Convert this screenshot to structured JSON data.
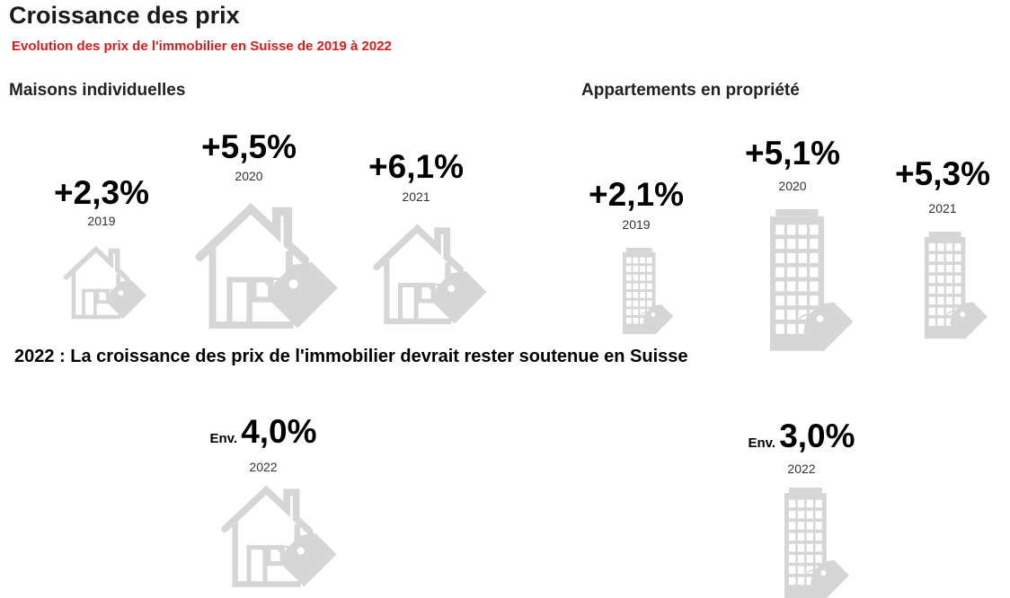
{
  "chart_data": {
    "type": "pictogram",
    "title": "Croissance des prix",
    "subtitle": "Evolution des prix de l'immobilier en Suisse de 2019 à 2022",
    "unit": "%",
    "panels": [
      {
        "name": "Maisons individuelles",
        "icon": "house-price-tag-icon",
        "points": [
          {
            "year": "2019",
            "value": 2.3,
            "label": "+2,3%"
          },
          {
            "year": "2020",
            "value": 5.5,
            "label": "+5,5%"
          },
          {
            "year": "2021",
            "value": 6.1,
            "label": "+6,1%"
          }
        ]
      },
      {
        "name": "Appartements en propriété",
        "icon": "apartment-building-price-tag-icon",
        "points": [
          {
            "year": "2019",
            "value": 2.1,
            "label": "+2,1%"
          },
          {
            "year": "2020",
            "value": 5.1,
            "label": "+5,1%"
          },
          {
            "year": "2021",
            "value": 5.3,
            "label": "+5,3%"
          }
        ]
      }
    ],
    "forecast": {
      "title": "2022 : La croissance des prix de l'immobilier devrait rester soutenue en Suisse",
      "items": [
        {
          "category": "Maisons individuelles",
          "year": "2022",
          "prefix": "Env.",
          "value": 4.0,
          "label": "4,0%"
        },
        {
          "category": "Appartements en propriété",
          "year": "2022",
          "prefix": "Env.",
          "value": 3.0,
          "label": "3,0%"
        }
      ]
    }
  },
  "colors": {
    "icon": "#d6d6d6",
    "subtitle": "#e01818",
    "text": "#000000"
  }
}
